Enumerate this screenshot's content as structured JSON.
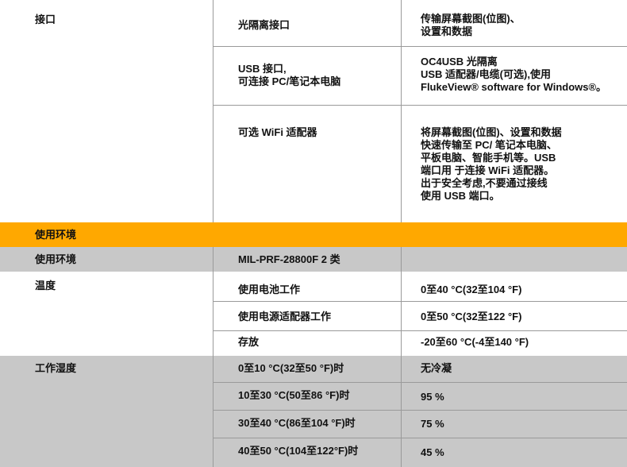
{
  "colors": {
    "section_header": "#FFA800",
    "gray_row": "#C8C8C8",
    "divider": "#9A9A9A"
  },
  "interface": {
    "label": "接口",
    "rows": [
      {
        "name": "光隔离接口",
        "value": "传输屏幕截图(位图)、\n设置和数据"
      },
      {
        "name": "USB 接口,\n可连接 PC/笔记本电脑",
        "value": "OC4USB 光隔离\nUSB 适配器/电缆(可选),使用\nFlukeView® software for Windows®。"
      },
      {
        "name": "可选 WiFi 适配器",
        "value": "将屏幕截图(位图)、设置和数据\n快速传输至 PC/ 笔记本电脑、\n平板电脑、智能手机等。USB\n端口用 于连接 WiFi 适配器。\n出于安全考虑,不要通过接线\n使用 USB 端口。"
      }
    ]
  },
  "section": {
    "title": "使用环境"
  },
  "environment": {
    "label": "使用环境",
    "value": "MIL-PRF-28800F 2 类"
  },
  "temperature": {
    "label": "温度",
    "rows": [
      {
        "name": "使用电池工作",
        "value": "0至40 °C(32至104 °F)"
      },
      {
        "name": "使用电源适配器工作",
        "value": "0至50 °C(32至122 °F)"
      },
      {
        "name": "存放",
        "value": "-20至60 °C(-4至140 °F)"
      }
    ]
  },
  "humidity": {
    "label": "工作湿度",
    "rows": [
      {
        "name": "0至10 °C(32至50 °F)时",
        "value": "无冷凝"
      },
      {
        "name": "10至30 °C(50至86 °F)时",
        "value": "95 %"
      },
      {
        "name": "30至40 °C(86至104 °F)时",
        "value": "75 %"
      },
      {
        "name": "40至50 °C(104至122°F)时",
        "value": "45 %"
      }
    ]
  }
}
